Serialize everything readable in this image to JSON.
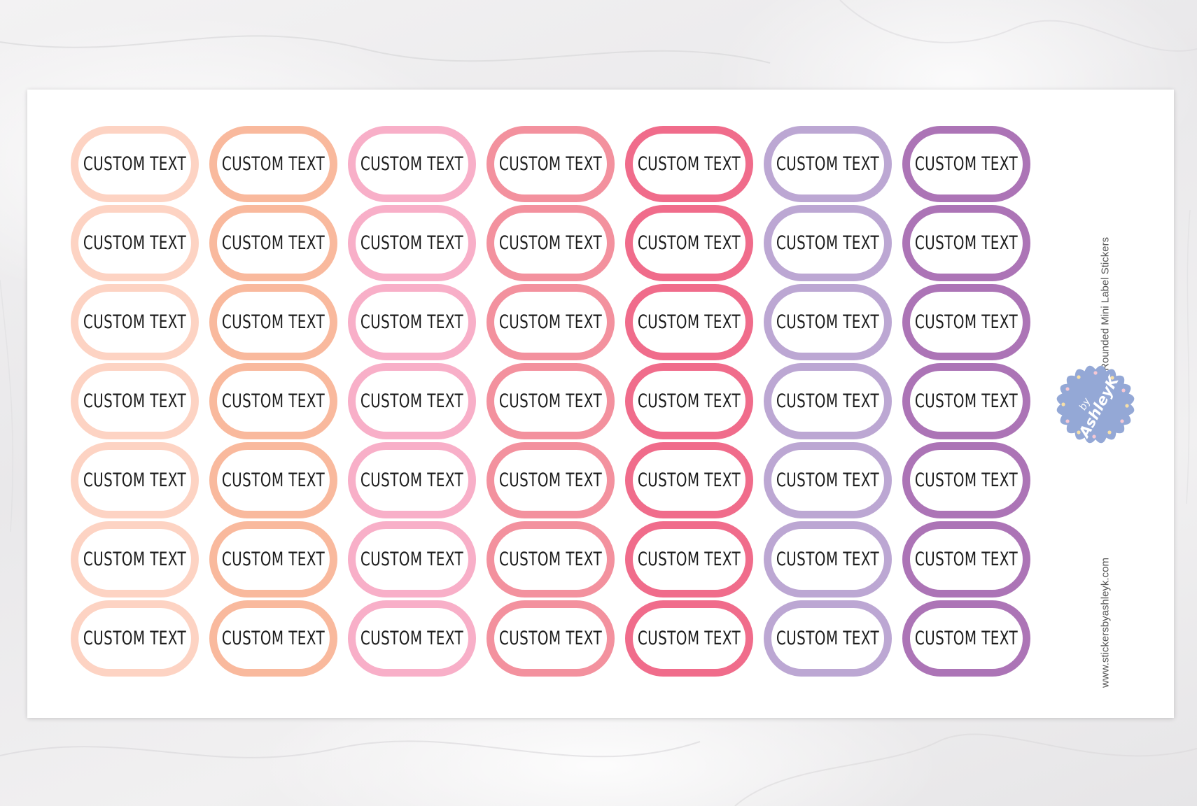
{
  "sheet": {
    "title": "Custom Text Rounded Mini Label Stickers",
    "url": "www.stickersbyashleyk.com",
    "logo": {
      "top": "by",
      "name": "AshleyK",
      "color": "#94a8d6"
    }
  },
  "label_text": "CUSTOM TEXT",
  "rows": 7,
  "columns": [
    {
      "color": "#fdd3c3"
    },
    {
      "color": "#f9b99d"
    },
    {
      "color": "#f8afc8"
    },
    {
      "color": "#f3919e"
    },
    {
      "color": "#f06c8b"
    },
    {
      "color": "#bca7d3"
    },
    {
      "color": "#ac74b6"
    }
  ]
}
